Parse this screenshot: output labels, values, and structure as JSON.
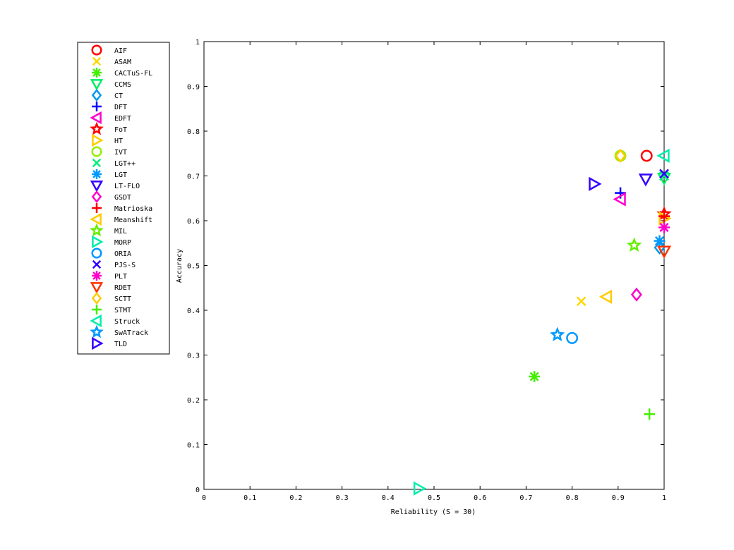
{
  "chart_data": {
    "type": "scatter",
    "title": "",
    "xlabel": "Reliability (S = 30)",
    "ylabel": "Accuracy",
    "xlim": [
      0,
      1
    ],
    "ylim": [
      0,
      1
    ],
    "xticks": [
      "0",
      "0.1",
      "0.2",
      "0.3",
      "0.4",
      "0.5",
      "0.6",
      "0.7",
      "0.8",
      "0.9",
      "1"
    ],
    "yticks": [
      "0",
      "0.1",
      "0.2",
      "0.3",
      "0.4",
      "0.5",
      "0.6",
      "0.7",
      "0.8",
      "0.9",
      "1"
    ],
    "grid": true,
    "grid_style": "dotted",
    "legend_placement": "outside-left",
    "series": [
      {
        "name": "AIF",
        "marker": "circle",
        "color": "#ff0000",
        "x": 0.962,
        "y": 0.745
      },
      {
        "name": "ASAM",
        "marker": "x",
        "color": "#ffd700",
        "x": 0.82,
        "y": 0.42
      },
      {
        "name": "CACTuS-FL",
        "marker": "asterisk",
        "color": "#44ee00",
        "x": 0.718,
        "y": 0.252
      },
      {
        "name": "CCMS",
        "marker": "triangle-down",
        "color": "#00ee66",
        "x": 1.0,
        "y": 0.695
      },
      {
        "name": "CT",
        "marker": "diamond",
        "color": "#0099ee",
        "x": 0.99,
        "y": 0.54
      },
      {
        "name": "DFT",
        "marker": "plus",
        "color": "#0000ff",
        "x": 0.905,
        "y": 0.662
      },
      {
        "name": "EDFT",
        "marker": "triangle-left",
        "color": "#ff00cc",
        "x": 0.905,
        "y": 0.648
      },
      {
        "name": "FoT",
        "marker": "star",
        "color": "#ff0000",
        "x": 1.0,
        "y": 0.615
      },
      {
        "name": "HT",
        "marker": "triangle-right",
        "color": "#ffcc00",
        "x": 1.0,
        "y": 0.605
      },
      {
        "name": "IVT",
        "marker": "circle",
        "color": "#99ee00",
        "x": 0.905,
        "y": 0.745
      },
      {
        "name": "LGT++",
        "marker": "x",
        "color": "#00ee77",
        "x": 1.0,
        "y": 0.7
      },
      {
        "name": "LGT",
        "marker": "asterisk",
        "color": "#0099ff",
        "x": 0.99,
        "y": 0.555
      },
      {
        "name": "LT-FLO",
        "marker": "triangle-down",
        "color": "#3300ff",
        "x": 0.96,
        "y": 0.693
      },
      {
        "name": "GSDT",
        "marker": "diamond",
        "color": "#ff00cc",
        "x": 0.94,
        "y": 0.435
      },
      {
        "name": "Matrioska",
        "marker": "plus",
        "color": "#ff0000",
        "x": 1.0,
        "y": 0.61
      },
      {
        "name": "Meanshift",
        "marker": "triangle-left",
        "color": "#ffcc00",
        "x": 0.875,
        "y": 0.43
      },
      {
        "name": "MIL",
        "marker": "star",
        "color": "#66ee00",
        "x": 0.935,
        "y": 0.545
      },
      {
        "name": "MORP",
        "marker": "triangle-right",
        "color": "#00eeaa",
        "x": 0.467,
        "y": 0.002
      },
      {
        "name": "ORIA",
        "marker": "circle",
        "color": "#0099ff",
        "x": 0.8,
        "y": 0.338
      },
      {
        "name": "PJS-S",
        "marker": "x",
        "color": "#3300ff",
        "x": 1.0,
        "y": 0.705
      },
      {
        "name": "PLT",
        "marker": "asterisk",
        "color": "#ff00cc",
        "x": 1.0,
        "y": 0.585
      },
      {
        "name": "RDET",
        "marker": "triangle-down",
        "color": "#ff3300",
        "x": 1.0,
        "y": 0.532
      },
      {
        "name": "SCTT",
        "marker": "diamond",
        "color": "#ffcc00",
        "x": 0.905,
        "y": 0.745
      },
      {
        "name": "STMT",
        "marker": "plus",
        "color": "#44ee00",
        "x": 0.968,
        "y": 0.168
      },
      {
        "name": "Struck",
        "marker": "triangle-left",
        "color": "#00eeaa",
        "x": 1.0,
        "y": 0.745
      },
      {
        "name": "SwATrack",
        "marker": "star",
        "color": "#0099ff",
        "x": 0.768,
        "y": 0.345
      },
      {
        "name": "TLD",
        "marker": "triangle-right",
        "color": "#3300ff",
        "x": 0.848,
        "y": 0.682
      }
    ]
  }
}
